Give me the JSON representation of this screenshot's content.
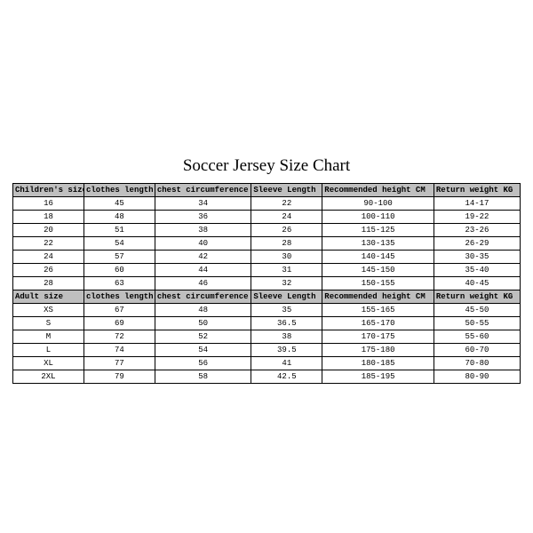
{
  "title": "Soccer Jersey Size Chart",
  "children_table": {
    "headers": [
      "Children's size",
      "clothes length",
      "chest circumference",
      "Sleeve Length",
      "Recommended height CM",
      "Return weight KG"
    ],
    "rows": [
      [
        "16",
        "45",
        "34",
        "22",
        "90-100",
        "14-17"
      ],
      [
        "18",
        "48",
        "36",
        "24",
        "100-110",
        "19-22"
      ],
      [
        "20",
        "51",
        "38",
        "26",
        "115-125",
        "23-26"
      ],
      [
        "22",
        "54",
        "40",
        "28",
        "130-135",
        "26-29"
      ],
      [
        "24",
        "57",
        "42",
        "30",
        "140-145",
        "30-35"
      ],
      [
        "26",
        "60",
        "44",
        "31",
        "145-150",
        "35-40"
      ],
      [
        "28",
        "63",
        "46",
        "32",
        "150-155",
        "40-45"
      ]
    ]
  },
  "adult_table": {
    "headers": [
      "Adult size",
      "clothes length",
      "chest circumference",
      "Sleeve Length",
      "Recommended height CM",
      "Return weight KG"
    ],
    "rows": [
      [
        "XS",
        "67",
        "48",
        "35",
        "155-165",
        "45-50"
      ],
      [
        "S",
        "69",
        "50",
        "36.5",
        "165-170",
        "50-55"
      ],
      [
        "M",
        "72",
        "52",
        "38",
        "170-175",
        "55-60"
      ],
      [
        "L",
        "74",
        "54",
        "39.5",
        "175-180",
        "60-70"
      ],
      [
        "XL",
        "77",
        "56",
        "41",
        "180-185",
        "70-80"
      ],
      [
        "2XL",
        "79",
        "58",
        "42.5",
        "185-195",
        "80-90"
      ]
    ]
  },
  "colors": {
    "header_bg": "#bfbfbf",
    "row_bg": "#ffffff",
    "border": "#000000",
    "text": "#000000"
  }
}
